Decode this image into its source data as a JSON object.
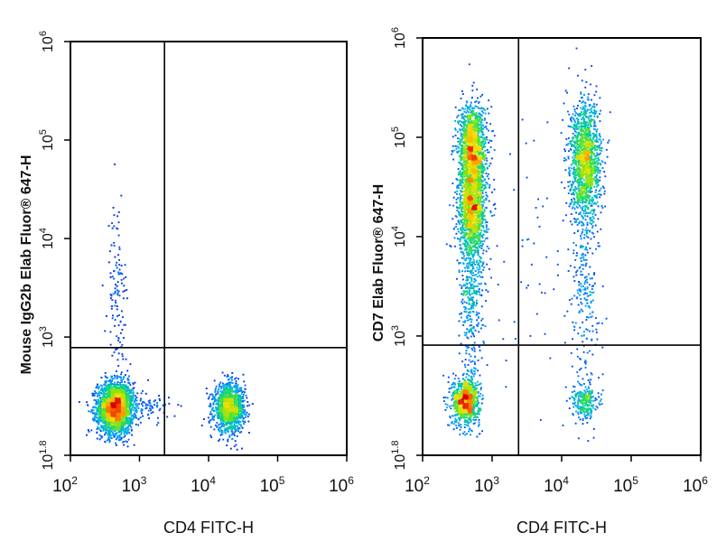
{
  "chart_data": [
    {
      "type": "scatter",
      "xlabel": "CD4 FITC-H",
      "ylabel": "Mouse IgG2b Elab Fluor® 647-H",
      "xscale": "log",
      "yscale": "log",
      "xlim": [
        100,
        1000000
      ],
      "ylim": [
        63,
        1000000
      ],
      "x_ticks": [
        {
          "value": 100,
          "base": "10",
          "exp": "2"
        },
        {
          "value": 1000,
          "base": "10",
          "exp": "3"
        },
        {
          "value": 10000,
          "base": "10",
          "exp": "4"
        },
        {
          "value": 100000,
          "base": "10",
          "exp": "5"
        },
        {
          "value": 1000000,
          "base": "10",
          "exp": "6"
        }
      ],
      "y_ticks": [
        {
          "value": 63,
          "base": "10",
          "exp": "1.8"
        },
        {
          "value": 1000,
          "base": "10",
          "exp": "3"
        },
        {
          "value": 10000,
          "base": "10",
          "exp": "4"
        },
        {
          "value": 100000,
          "base": "10",
          "exp": "5"
        },
        {
          "value": 1000000,
          "base": "10",
          "exp": "6"
        }
      ],
      "gates": {
        "x": 2300,
        "y": 780
      },
      "populations": [
        {
          "cx": 450,
          "cy": 190,
          "sx": 0.13,
          "sy": 0.13,
          "n": 2600
        },
        {
          "cx": 20000,
          "cy": 190,
          "sx": 0.11,
          "sy": 0.12,
          "n": 1300
        },
        {
          "cx": 1500,
          "cy": 190,
          "sx": 0.13,
          "sy": 0.06,
          "n": 60
        },
        {
          "cx": 480,
          "cy": 2500,
          "sx": 0.07,
          "sy": 0.5,
          "n": 130
        }
      ]
    },
    {
      "type": "scatter",
      "xlabel": "CD4 FITC-H",
      "ylabel": "CD7 Elab Fluor® 647-H",
      "xscale": "log",
      "yscale": "log",
      "xlim": [
        100,
        1000000
      ],
      "ylim": [
        63,
        1000000
      ],
      "x_ticks": [
        {
          "value": 100,
          "base": "10",
          "exp": "2"
        },
        {
          "value": 1000,
          "base": "10",
          "exp": "3"
        },
        {
          "value": 10000,
          "base": "10",
          "exp": "4"
        },
        {
          "value": 100000,
          "base": "10",
          "exp": "5"
        },
        {
          "value": 1000000,
          "base": "10",
          "exp": "6"
        }
      ],
      "y_ticks": [
        {
          "value": 63,
          "base": "10",
          "exp": "1.8"
        },
        {
          "value": 1000,
          "base": "10",
          "exp": "3"
        },
        {
          "value": 10000,
          "base": "10",
          "exp": "4"
        },
        {
          "value": 100000,
          "base": "10",
          "exp": "5"
        },
        {
          "value": 1000000,
          "base": "10",
          "exp": "6"
        }
      ],
      "gates": {
        "x": 2400,
        "y": 810
      },
      "populations": [
        {
          "cx": 420,
          "cy": 220,
          "sx": 0.1,
          "sy": 0.12,
          "n": 900
        },
        {
          "cx": 520,
          "cy": 80000,
          "sx": 0.1,
          "sy": 0.22,
          "n": 1300
        },
        {
          "cx": 520,
          "cy": 20000,
          "sx": 0.1,
          "sy": 0.25,
          "n": 1400
        },
        {
          "cx": 500,
          "cy": 3000,
          "sx": 0.09,
          "sy": 0.45,
          "n": 420
        },
        {
          "cx": 22000,
          "cy": 55000,
          "sx": 0.11,
          "sy": 0.3,
          "n": 1500
        },
        {
          "cx": 22000,
          "cy": 3000,
          "sx": 0.1,
          "sy": 0.45,
          "n": 220
        },
        {
          "cx": 22000,
          "cy": 220,
          "sx": 0.09,
          "sy": 0.1,
          "n": 240
        },
        {
          "cx": 3500,
          "cy": 5000,
          "sx": 0.45,
          "sy": 0.7,
          "n": 60
        }
      ]
    }
  ]
}
